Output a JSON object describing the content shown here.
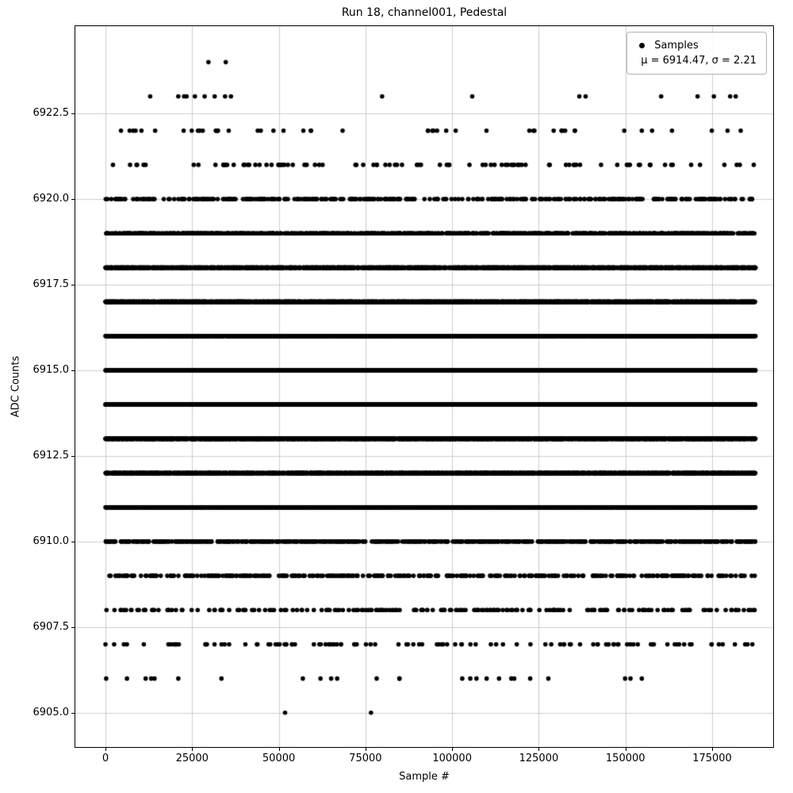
{
  "chart_data": {
    "type": "scatter",
    "title": "Run 18, channel001, Pedestal",
    "xlabel": "Sample #",
    "ylabel": "ADC Counts",
    "legend_label": "Samples",
    "stats_label": "μ = 6914.47, σ = 2.21",
    "mu": 6914.47,
    "sigma": 2.21,
    "n_samples_approx": 187500,
    "x_range": [
      0,
      187500
    ],
    "xlim": [
      -8693,
      192607
    ],
    "ylim": [
      6904.0,
      6925.05
    ],
    "x_ticks": [
      0,
      25000,
      50000,
      75000,
      100000,
      125000,
      150000,
      175000
    ],
    "x_tick_labels": [
      "0",
      "25000",
      "50000",
      "75000",
      "100000",
      "125000",
      "150000",
      "175000"
    ],
    "y_ticks": [
      6905.0,
      6907.5,
      6910.0,
      6912.5,
      6915.0,
      6917.5,
      6920.0,
      6922.5
    ],
    "y_tick_labels": [
      "6905.0",
      "6907.5",
      "6910.0",
      "6912.5",
      "6915.0",
      "6917.5",
      "6920.0",
      "6922.5"
    ],
    "grid": true,
    "grid_color": "#c0c0c0",
    "point_color": "#000000",
    "marker_radius": 2.8,
    "legend_position": "upper right",
    "bands": [
      {
        "adc": 6905,
        "count": 2,
        "x_positions": [
          51800,
          76600
        ]
      },
      {
        "adc": 6906,
        "count": 26
      },
      {
        "adc": 6907,
        "count": 110
      },
      {
        "adc": 6908,
        "count": 210
      },
      {
        "adc": 6909,
        "count": 380
      },
      {
        "adc": 6910,
        "count": 750
      },
      {
        "adc": 6911,
        "count": 2600
      },
      {
        "adc": 6912,
        "count": 3200
      },
      {
        "adc": 6913,
        "count": 3600
      },
      {
        "adc": 6914,
        "count": 4000
      },
      {
        "adc": 6915,
        "count": 4000
      },
      {
        "adc": 6916,
        "count": 3600
      },
      {
        "adc": 6917,
        "count": 3200
      },
      {
        "adc": 6918,
        "count": 2600
      },
      {
        "adc": 6919,
        "count": 900
      },
      {
        "adc": 6920,
        "count": 380
      },
      {
        "adc": 6921,
        "count": 95
      },
      {
        "adc": 6922,
        "count": 48
      },
      {
        "adc": 6923,
        "count": 18,
        "x_positions": [
          12900,
          21000,
          22700,
          23400,
          25800,
          28600,
          31500,
          34500,
          36200,
          79800,
          105800,
          136700,
          138500,
          160300,
          170800,
          175500,
          180200,
          181800
        ]
      },
      {
        "adc": 6924,
        "count": 2,
        "x_positions": [
          29700,
          34700
        ]
      }
    ]
  }
}
